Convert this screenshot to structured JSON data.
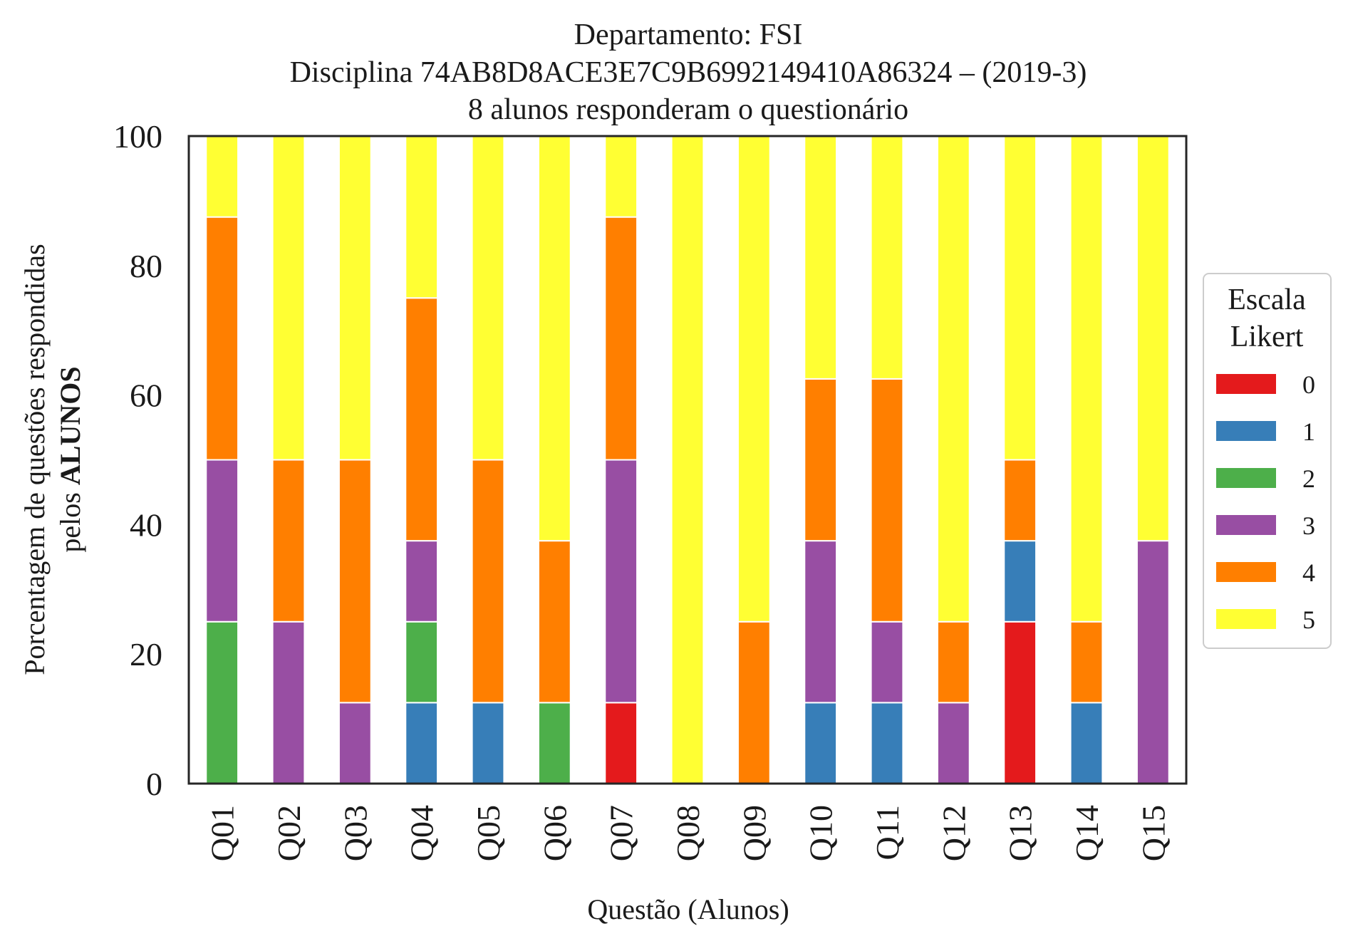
{
  "chart_data": {
    "type": "bar",
    "stacked": true,
    "title_lines": [
      "Departamento: FSI",
      "Disciplina 74AB8D8ACE3E7C9B6992149410A86324 – (2019-3)",
      "8 alunos responderam o questionário"
    ],
    "xlabel": "Questão (Alunos)",
    "ylabel_line1": "Porcentagem de questões respondidas",
    "ylabel_line2_prefix": "pelos ",
    "ylabel_line2_bold": "ALUNOS",
    "ylim": [
      0,
      100
    ],
    "yticks": [
      "0",
      "20",
      "40",
      "60",
      "80",
      "100"
    ],
    "grid": false,
    "legend_title_lines": [
      "Escala",
      "Likert"
    ],
    "legend_placement": "right",
    "categories": [
      "Q01",
      "Q02",
      "Q03",
      "Q04",
      "Q05",
      "Q06",
      "Q07",
      "Q08",
      "Q09",
      "Q10",
      "Q11",
      "Q12",
      "Q13",
      "Q14",
      "Q15"
    ],
    "series": [
      {
        "name": "0",
        "color": "#e41a1c",
        "values": [
          0,
          0,
          0,
          0,
          0,
          0,
          12.5,
          0,
          0,
          0,
          0,
          0,
          25,
          0,
          0
        ]
      },
      {
        "name": "1",
        "color": "#377eb8",
        "values": [
          0,
          0,
          0,
          12.5,
          12.5,
          0,
          0,
          0,
          0,
          12.5,
          12.5,
          0,
          12.5,
          12.5,
          0
        ]
      },
      {
        "name": "2",
        "color": "#4daf4a",
        "values": [
          25,
          0,
          0,
          12.5,
          0,
          12.5,
          0,
          0,
          0,
          0,
          0,
          0,
          0,
          0,
          0
        ]
      },
      {
        "name": "3",
        "color": "#984ea3",
        "values": [
          25,
          25,
          12.5,
          12.5,
          0,
          0,
          37.5,
          0,
          0,
          25,
          12.5,
          12.5,
          0,
          0,
          37.5
        ]
      },
      {
        "name": "4",
        "color": "#ff7f00",
        "values": [
          37.5,
          25,
          37.5,
          37.5,
          37.5,
          25,
          37.5,
          0,
          25,
          25,
          37.5,
          12.5,
          12.5,
          12.5,
          0
        ]
      },
      {
        "name": "5",
        "color": "#ffff33",
        "values": [
          12.5,
          50,
          50,
          25,
          50,
          62.5,
          12.5,
          100,
          75,
          37.5,
          37.5,
          75,
          50,
          75,
          62.5
        ]
      }
    ]
  }
}
